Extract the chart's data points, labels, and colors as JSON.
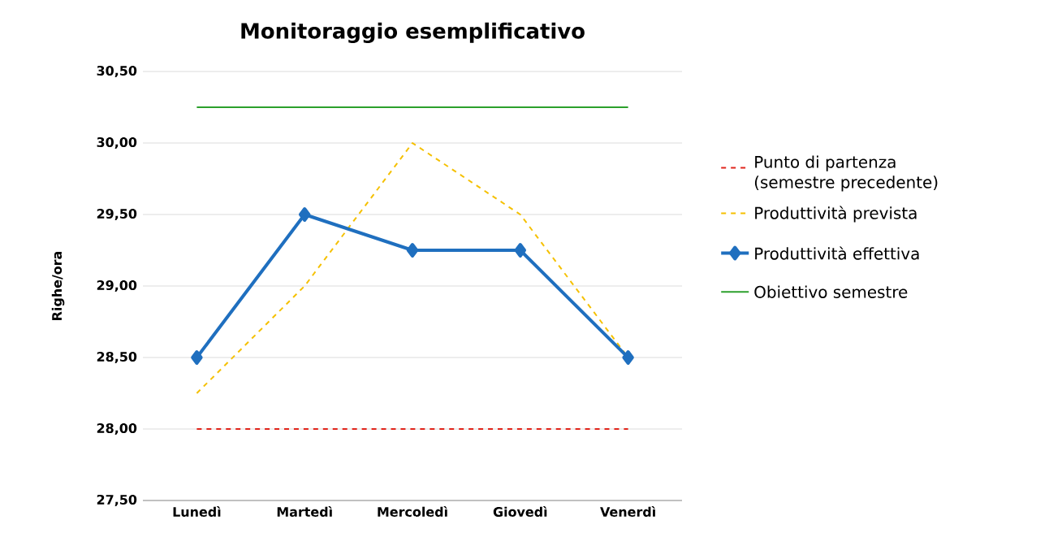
{
  "chart_data": {
    "type": "line",
    "title": "Monitoraggio esemplificativo",
    "ylabel": "Righe/ora",
    "categories": [
      "Lunedì",
      "Martedì",
      "Mercoledì",
      "Giovedì",
      "Venerdì"
    ],
    "series": [
      {
        "name": "Punto di partenza (semestre precedente)",
        "color": "#e0241b",
        "line_style": "dashed",
        "marker": "none",
        "values": [
          28.0,
          28.0,
          28.0,
          28.0,
          28.0
        ]
      },
      {
        "name": "Produttività prevista",
        "color": "#f5c000",
        "line_style": "dashed",
        "marker": "none",
        "values": [
          28.25,
          29.0,
          30.0,
          29.5,
          28.5
        ]
      },
      {
        "name": "Produttività effettiva",
        "color": "#1f6fbf",
        "line_style": "solid",
        "marker": "diamond",
        "values": [
          28.5,
          29.5,
          29.25,
          29.25,
          28.5
        ]
      },
      {
        "name": "Obiettivo semestre",
        "color": "#2ca02c",
        "line_style": "solid",
        "marker": "none",
        "values": [
          30.25,
          30.25,
          30.25,
          30.25,
          30.25
        ]
      }
    ],
    "ylim": [
      27.5,
      30.5
    ],
    "yticks": [
      {
        "value": 27.5,
        "label": "27,50"
      },
      {
        "value": 28.0,
        "label": "28,00"
      },
      {
        "value": 28.5,
        "label": "28,50"
      },
      {
        "value": 29.0,
        "label": "29,00"
      },
      {
        "value": 29.5,
        "label": "29,50"
      },
      {
        "value": 30.0,
        "label": "30,00"
      },
      {
        "value": 30.5,
        "label": "30,50"
      }
    ],
    "grid": "y",
    "legend": "right"
  }
}
